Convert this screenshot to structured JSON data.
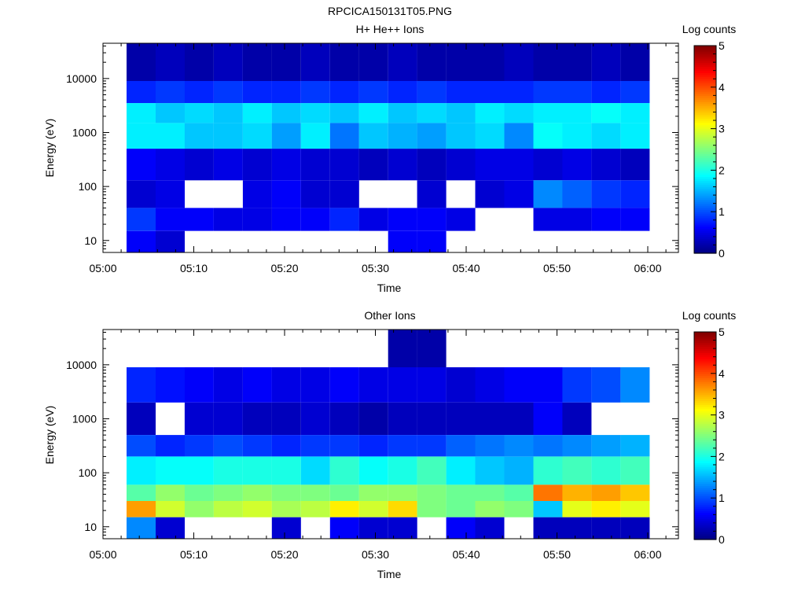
{
  "figure_title": "RPCICA150131T05.PNG",
  "colors": {
    "colormap": [
      "#00007f",
      "#0000ff",
      "#007fff",
      "#00ffff",
      "#7fff7f",
      "#ffff00",
      "#ff7f00",
      "#ff0000",
      "#7f0000"
    ]
  },
  "chart_data": [
    {
      "type": "heatmap",
      "title": "H+ He++ Ions",
      "xlabel": "Time",
      "ylabel": "Energy (eV)",
      "yscale": "log",
      "ylim": [
        6,
        45000
      ],
      "xlim": [
        "05:00",
        "06:03"
      ],
      "xticks": [
        "05:00",
        "05:10",
        "05:20",
        "05:30",
        "05:40",
        "05:50",
        "06:00"
      ],
      "yticks": [
        10,
        100,
        1000,
        10000
      ],
      "ytick_labels": [
        "10",
        "100",
        "1000",
        "10000"
      ],
      "colorbar": {
        "label": "Log counts",
        "range": [
          0,
          5
        ],
        "ticks": [
          "0",
          "1",
          "2",
          "3",
          "4",
          "5"
        ]
      },
      "grid": false,
      "time_bin_minutes": 3.2,
      "time_bins_start": [
        "05:02.6",
        "05:05.8",
        "05:09.0",
        "05:12.2",
        "05:15.4",
        "05:18.6",
        "05:21.8",
        "05:25.0",
        "05:28.2",
        "05:31.4",
        "05:34.6",
        "05:37.8",
        "05:41.0",
        "05:44.2",
        "05:47.4",
        "05:50.6",
        "05:53.8",
        "05:57.0"
      ],
      "log_counts_by_energy_band": [
        {
          "band_ev": [
            9000,
            45000
          ],
          "values": [
            0.2,
            0.3,
            0.2,
            0.3,
            0.2,
            0.2,
            0.3,
            0.2,
            0.2,
            0.3,
            0.2,
            0.2,
            0.2,
            0.3,
            0.2,
            0.2,
            0.3,
            0.2
          ]
        },
        {
          "band_ev": [
            3500,
            9000
          ],
          "values": [
            0.8,
            0.9,
            0.8,
            0.9,
            0.8,
            0.8,
            0.9,
            0.8,
            0.9,
            0.8,
            0.9,
            0.8,
            0.8,
            0.8,
            0.9,
            0.9,
            0.8,
            0.9
          ]
        },
        {
          "band_ev": [
            1500,
            3500
          ],
          "values": [
            1.8,
            1.6,
            1.7,
            1.6,
            1.8,
            1.6,
            1.7,
            1.6,
            1.8,
            1.6,
            1.7,
            1.6,
            1.8,
            1.7,
            1.8,
            1.8,
            1.9,
            1.8
          ]
        },
        {
          "band_ev": [
            500,
            1500
          ],
          "values": [
            1.8,
            1.8,
            1.6,
            1.6,
            1.7,
            1.4,
            1.8,
            1.2,
            1.6,
            1.5,
            1.4,
            1.6,
            1.7,
            1.3,
            1.9,
            1.8,
            1.7,
            1.8
          ]
        },
        {
          "band_ev": [
            130,
            500
          ],
          "values": [
            0.6,
            0.5,
            0.4,
            0.5,
            0.4,
            0.5,
            0.4,
            0.4,
            0.3,
            0.4,
            0.3,
            0.4,
            0.5,
            0.5,
            0.4,
            0.5,
            0.4,
            0.3
          ]
        },
        {
          "band_ev": [
            40,
            130
          ],
          "values": [
            0.4,
            0.5,
            0.0,
            0.0,
            0.5,
            0.6,
            0.4,
            0.4,
            0.0,
            0.0,
            0.4,
            0.0,
            0.4,
            0.5,
            1.3,
            1.1,
            0.9,
            0.8
          ]
        },
        {
          "band_ev": [
            15,
            40
          ],
          "values": [
            0.9,
            0.6,
            0.6,
            0.5,
            0.5,
            0.6,
            0.6,
            0.8,
            0.5,
            0.6,
            0.6,
            0.5,
            0.0,
            0.0,
            0.5,
            0.5,
            0.6,
            0.6
          ]
        },
        {
          "band_ev": [
            6,
            15
          ],
          "values": [
            0.6,
            0.4,
            0.0,
            0.0,
            0.0,
            0.0,
            0.0,
            0.0,
            0.0,
            0.6,
            0.6,
            0.0,
            0.0,
            0.0,
            0.0,
            0.0,
            0.0,
            0.0
          ]
        }
      ]
    },
    {
      "type": "heatmap",
      "title": "Other Ions",
      "xlabel": "Time",
      "ylabel": "Energy (eV)",
      "yscale": "log",
      "ylim": [
        6,
        45000
      ],
      "xlim": [
        "05:00",
        "06:03"
      ],
      "xticks": [
        "05:00",
        "05:10",
        "05:20",
        "05:30",
        "05:40",
        "05:50",
        "06:00"
      ],
      "yticks": [
        10,
        100,
        1000,
        10000
      ],
      "ytick_labels": [
        "10",
        "100",
        "1000",
        "10000"
      ],
      "colorbar": {
        "label": "Log counts",
        "range": [
          0,
          5
        ],
        "ticks": [
          "0",
          "1",
          "2",
          "3",
          "4",
          "5"
        ]
      },
      "grid": false,
      "time_bin_minutes": 3.2,
      "time_bins_start": [
        "05:02.6",
        "05:05.8",
        "05:09.0",
        "05:12.2",
        "05:15.4",
        "05:18.6",
        "05:21.8",
        "05:25.0",
        "05:28.2",
        "05:31.4",
        "05:34.6",
        "05:37.8",
        "05:41.0",
        "05:44.2",
        "05:47.4",
        "05:50.6",
        "05:53.8",
        "05:57.0"
      ],
      "log_counts_by_energy_band": [
        {
          "band_ev": [
            9000,
            45000
          ],
          "values": [
            0.0,
            0.0,
            0.0,
            0.0,
            0.0,
            0.0,
            0.0,
            0.0,
            0.0,
            0.2,
            0.2,
            0.0,
            0.0,
            0.0,
            0.0,
            0.0,
            0.0,
            0.0
          ]
        },
        {
          "band_ev": [
            2000,
            9000
          ],
          "values": [
            0.8,
            0.7,
            0.6,
            0.5,
            0.6,
            0.5,
            0.5,
            0.6,
            0.5,
            0.5,
            0.5,
            0.4,
            0.5,
            0.6,
            0.6,
            0.9,
            1.0,
            1.3
          ]
        },
        {
          "band_ev": [
            500,
            2000
          ],
          "values": [
            0.3,
            0.0,
            0.4,
            0.4,
            0.3,
            0.3,
            0.4,
            0.3,
            0.2,
            0.3,
            0.3,
            0.3,
            0.3,
            0.3,
            0.6,
            0.3,
            0.0,
            0.0
          ]
        },
        {
          "band_ev": [
            200,
            500
          ],
          "values": [
            1.0,
            0.8,
            0.9,
            1.0,
            0.9,
            0.8,
            0.9,
            0.9,
            0.8,
            0.9,
            0.9,
            1.1,
            1.2,
            1.3,
            1.2,
            1.3,
            1.4,
            1.5
          ]
        },
        {
          "band_ev": [
            60,
            200
          ],
          "values": [
            1.8,
            1.9,
            1.9,
            2.0,
            2.0,
            2.0,
            1.7,
            2.1,
            1.9,
            2.0,
            2.2,
            1.8,
            1.6,
            1.5,
            2.1,
            2.2,
            2.1,
            2.2
          ]
        },
        {
          "band_ev": [
            30,
            60
          ],
          "values": [
            2.3,
            2.6,
            2.4,
            2.5,
            2.6,
            2.5,
            2.5,
            2.4,
            2.6,
            2.6,
            2.5,
            2.4,
            2.4,
            2.3,
            3.8,
            3.5,
            3.6,
            3.4
          ]
        },
        {
          "band_ev": [
            15,
            30
          ],
          "values": [
            3.6,
            2.9,
            2.6,
            2.8,
            2.9,
            2.7,
            2.8,
            3.2,
            2.9,
            3.3,
            2.5,
            2.4,
            2.6,
            2.5,
            1.6,
            3.0,
            3.2,
            3.0
          ]
        },
        {
          "band_ev": [
            6,
            15
          ],
          "values": [
            1.3,
            0.4,
            0.0,
            0.0,
            0.0,
            0.4,
            0.0,
            0.6,
            0.4,
            0.4,
            0.0,
            0.6,
            0.4,
            0.0,
            0.3,
            0.3,
            0.3,
            0.3
          ]
        }
      ]
    }
  ]
}
